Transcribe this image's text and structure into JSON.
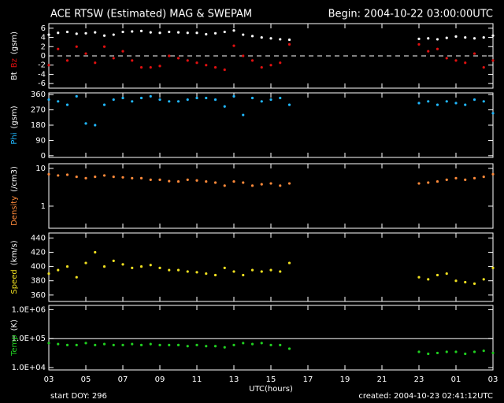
{
  "header": {
    "title": "ACE RTSW (Estimated) MAG & SWEPAM",
    "begin": "Begin: 2004-10-22 03:00:00UTC"
  },
  "footer": {
    "xlabel": "UTC(hours)",
    "start": "start DOY: 296",
    "created": "created: 2004-10-23 02:41:12UTC"
  },
  "chart_data": [
    {
      "type": "scatter",
      "ylabel": "(gsm)",
      "ylim": [
        -7,
        7
      ],
      "yticks": [
        6,
        4,
        2,
        0,
        -2,
        -4,
        -6
      ],
      "refline": 0,
      "xlim": [
        0,
        24
      ],
      "xticks": [
        0,
        2,
        4,
        6,
        8,
        10,
        12,
        14,
        16,
        18,
        20,
        22,
        24
      ],
      "x": [
        0,
        0.5,
        1,
        1.5,
        2,
        2.5,
        3,
        3.5,
        4,
        4.5,
        5,
        5.5,
        6,
        6.5,
        7,
        7.5,
        8,
        8.5,
        9,
        9.5,
        10,
        10.5,
        11,
        11.5,
        12,
        12.5,
        13,
        20,
        20.5,
        21,
        21.5,
        22,
        22.5,
        23,
        23.5,
        24
      ],
      "series": [
        {
          "name": "Bt",
          "color": "#ffffff",
          "values": [
            4.6,
            5,
            5.2,
            4.8,
            4.9,
            5.1,
            4.4,
            4.6,
            5.2,
            5.3,
            5.4,
            5.1,
            5,
            5.2,
            5.1,
            5,
            5,
            4.7,
            4.9,
            5.2,
            5.5,
            4.6,
            4.3,
            4,
            3.8,
            3.6,
            3.5,
            3.7,
            3.8,
            3.6,
            3.9,
            4.2,
            4,
            3.8,
            4,
            4.4
          ]
        },
        {
          "name": "Bz",
          "color": "#e01010",
          "values": [
            -2,
            1.5,
            -1,
            2,
            0.5,
            -1.5,
            2,
            -0.5,
            1,
            -1,
            -2.5,
            -2.5,
            -2.2,
            0,
            -0.5,
            -1,
            -1.5,
            -2,
            -2.5,
            -3,
            2.2,
            0,
            -1,
            -2.5,
            -2,
            -1.5,
            2.5,
            2.5,
            1,
            1.5,
            -0.5,
            -1,
            -1.5,
            0.5,
            -2.5,
            -1
          ]
        }
      ]
    },
    {
      "type": "scatter",
      "ylabel": "(gsm)",
      "ylim": [
        -10,
        370
      ],
      "yticks": [
        0,
        90,
        180,
        270,
        360
      ],
      "xlim": [
        0,
        24
      ],
      "xticks": [
        0,
        2,
        4,
        6,
        8,
        10,
        12,
        14,
        16,
        18,
        20,
        22,
        24
      ],
      "x": [
        0,
        0.5,
        1,
        1.5,
        2,
        2.5,
        3,
        3.5,
        4,
        4.5,
        5,
        5.5,
        6,
        6.5,
        7,
        7.5,
        8,
        8.5,
        9,
        9.5,
        10,
        10.5,
        11,
        11.5,
        12,
        12.5,
        13,
        20,
        20.5,
        21,
        21.5,
        22,
        22.5,
        23,
        23.5,
        24
      ],
      "series": [
        {
          "name": "Phi",
          "color": "#20b8ff",
          "values": [
            330,
            320,
            300,
            350,
            190,
            180,
            300,
            330,
            340,
            320,
            340,
            350,
            330,
            320,
            320,
            330,
            340,
            340,
            330,
            290,
            350,
            240,
            340,
            320,
            330,
            340,
            300,
            310,
            320,
            300,
            320,
            310,
            300,
            330,
            320,
            250
          ]
        }
      ]
    },
    {
      "type": "scatter",
      "ylabel": "(/cm3)",
      "log": true,
      "ylim": [
        0.26,
        13.3
      ],
      "yticks": [
        1,
        10
      ],
      "xlim": [
        0,
        24
      ],
      "xticks": [
        0,
        2,
        4,
        6,
        8,
        10,
        12,
        14,
        16,
        18,
        20,
        22,
        24
      ],
      "x": [
        0,
        0.5,
        1,
        1.5,
        2,
        2.5,
        3,
        3.5,
        4,
        4.5,
        5,
        5.5,
        6,
        6.5,
        7,
        7.5,
        8,
        8.5,
        9,
        9.5,
        10,
        10.5,
        11,
        11.5,
        12,
        12.5,
        13,
        20,
        20.5,
        21,
        21.5,
        22,
        22.5,
        23,
        23.5,
        24
      ],
      "series": [
        {
          "name": "Density",
          "color": "#ff8a3a",
          "values": [
            7,
            6.5,
            6.8,
            6,
            5.5,
            6,
            6.5,
            6,
            5.8,
            5.5,
            5.5,
            5,
            5,
            4.6,
            4.5,
            5,
            4.8,
            4.5,
            4.2,
            3.5,
            4.5,
            4.2,
            3.5,
            3.8,
            4,
            3.5,
            4,
            4,
            4.2,
            4.5,
            5,
            5.5,
            5,
            5.5,
            6,
            7
          ]
        }
      ]
    },
    {
      "type": "scatter",
      "ylabel": "(km/s)",
      "ylim": [
        351,
        447
      ],
      "yticks": [
        360,
        380,
        400,
        420,
        440
      ],
      "xlim": [
        0,
        24
      ],
      "xticks": [
        0,
        2,
        4,
        6,
        8,
        10,
        12,
        14,
        16,
        18,
        20,
        22,
        24
      ],
      "x": [
        0,
        0.5,
        1,
        1.5,
        2,
        2.5,
        3,
        3.5,
        4,
        4.5,
        5,
        5.5,
        6,
        6.5,
        7,
        7.5,
        8,
        8.5,
        9,
        9.5,
        10,
        10.5,
        11,
        11.5,
        12,
        12.5,
        13,
        20,
        20.5,
        21,
        21.5,
        22,
        22.5,
        23,
        23.5,
        24
      ],
      "series": [
        {
          "name": "Speed",
          "color": "#f0e020",
          "values": [
            390,
            395,
            400,
            385,
            405,
            420,
            400,
            408,
            403,
            398,
            400,
            402,
            398,
            395,
            395,
            393,
            392,
            390,
            388,
            398,
            393,
            388,
            395,
            393,
            395,
            393,
            405,
            385,
            382,
            388,
            390,
            380,
            378,
            376,
            382,
            398
          ]
        }
      ]
    },
    {
      "type": "scatter",
      "ylabel": "(K)",
      "log": true,
      "ylim": [
        8300,
        1400000
      ],
      "refline": 100000,
      "yticks": [
        {
          "value": 1000000,
          "label": "1.0E+06"
        },
        {
          "value": 100000,
          "label": "1.0E+05"
        },
        {
          "value": 10000,
          "label": "1.0E+04"
        }
      ],
      "xlim": [
        0,
        24
      ],
      "xticks": [
        {
          "value": 0,
          "label": "03"
        },
        {
          "value": 2,
          "label": "05"
        },
        {
          "value": 4,
          "label": "07"
        },
        {
          "value": 6,
          "label": "09"
        },
        {
          "value": 8,
          "label": "11"
        },
        {
          "value": 10,
          "label": "13"
        },
        {
          "value": 12,
          "label": "15"
        },
        {
          "value": 14,
          "label": "17"
        },
        {
          "value": 16,
          "label": "19"
        },
        {
          "value": 18,
          "label": "21"
        },
        {
          "value": 20,
          "label": "23"
        },
        {
          "value": 22,
          "label": "01"
        },
        {
          "value": 24,
          "label": "03"
        }
      ],
      "x": [
        0,
        0.5,
        1,
        1.5,
        2,
        2.5,
        3,
        3.5,
        4,
        4.5,
        5,
        5.5,
        6,
        6.5,
        7,
        7.5,
        8,
        8.5,
        9,
        9.5,
        10,
        10.5,
        11,
        11.5,
        12,
        12.5,
        13,
        20,
        20.5,
        21,
        21.5,
        22,
        22.5,
        23,
        23.5,
        24
      ],
      "series": [
        {
          "name": "Temp",
          "color": "#20d020",
          "values": [
            70000,
            65000,
            60000,
            60000,
            70000,
            60000,
            65000,
            60000,
            60000,
            65000,
            60000,
            65000,
            60000,
            60000,
            60000,
            55000,
            60000,
            55000,
            55000,
            50000,
            60000,
            70000,
            65000,
            70000,
            60000,
            60000,
            45000,
            35000,
            30000,
            32000,
            35000,
            35000,
            30000,
            35000,
            38000,
            32000
          ]
        }
      ]
    }
  ]
}
